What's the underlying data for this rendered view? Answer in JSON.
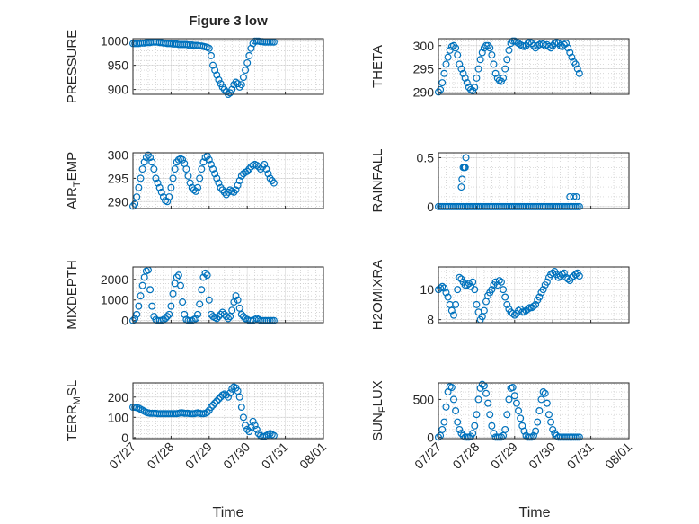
{
  "figure": {
    "title": "Figure 3 low",
    "x_label": "Time"
  },
  "x_ticks": [
    "07/27",
    "07/28",
    "07/29",
    "07/30",
    "07/31",
    "08/01"
  ],
  "chart_data": [
    {
      "type": "scatter",
      "ylabel": "PRESSURE",
      "ylim": [
        890,
        1005
      ],
      "yticks": [
        "900",
        "950",
        "1000"
      ],
      "grid": true,
      "panel": "row1-left",
      "x": [
        0,
        0.05,
        0.1,
        0.15,
        0.2,
        0.25,
        0.3,
        0.35,
        0.4,
        0.45,
        0.5,
        0.55,
        0.6,
        0.65,
        0.7,
        0.75,
        0.8,
        0.85,
        0.9,
        0.95,
        1,
        1.05,
        1.1,
        1.15,
        1.2,
        1.25,
        1.3,
        1.35,
        1.4,
        1.45,
        1.5,
        1.55,
        1.6,
        1.65,
        1.7,
        1.75,
        1.8,
        1.85,
        1.9,
        1.95,
        2,
        2.05,
        2.1,
        2.15,
        2.2,
        2.25,
        2.3,
        2.35,
        2.4,
        2.45,
        2.5,
        2.55,
        2.6,
        2.65,
        2.7,
        2.75,
        2.8,
        2.85,
        2.9,
        2.95,
        3,
        3.05,
        3.1,
        3.15,
        3.2,
        3.25,
        3.3,
        3.35,
        3.4,
        3.45,
        3.5,
        3.55,
        3.6,
        3.65,
        3.7
      ],
      "y": [
        995,
        995,
        995,
        995,
        996,
        996,
        996,
        997,
        997,
        997,
        998,
        998,
        998,
        998,
        997,
        997,
        996,
        996,
        995,
        995,
        995,
        994,
        994,
        994,
        993,
        993,
        993,
        993,
        993,
        992,
        992,
        992,
        991,
        991,
        991,
        990,
        990,
        989,
        988,
        987,
        985,
        970,
        950,
        940,
        930,
        920,
        912,
        905,
        900,
        895,
        890,
        893,
        900,
        910,
        915,
        912,
        905,
        910,
        925,
        940,
        955,
        970,
        985,
        995,
        1000,
        1000,
        1000,
        999,
        999,
        998,
        998,
        998,
        998,
        998,
        998
      ]
    },
    {
      "type": "scatter",
      "ylabel": "THETA",
      "ylim": [
        289.5,
        301.5
      ],
      "yticks": [
        "290",
        "295",
        "300"
      ],
      "grid": true,
      "panel": "row1-right",
      "x": [
        0,
        0.05,
        0.1,
        0.15,
        0.2,
        0.25,
        0.3,
        0.35,
        0.4,
        0.45,
        0.5,
        0.55,
        0.6,
        0.65,
        0.7,
        0.75,
        0.8,
        0.85,
        0.9,
        0.95,
        1,
        1.05,
        1.1,
        1.15,
        1.2,
        1.25,
        1.3,
        1.35,
        1.4,
        1.45,
        1.5,
        1.55,
        1.6,
        1.65,
        1.7,
        1.75,
        1.8,
        1.85,
        1.9,
        1.95,
        2,
        2.05,
        2.1,
        2.15,
        2.2,
        2.25,
        2.3,
        2.35,
        2.4,
        2.45,
        2.5,
        2.55,
        2.6,
        2.65,
        2.7,
        2.75,
        2.8,
        2.85,
        2.9,
        2.95,
        3,
        3.05,
        3.1,
        3.15,
        3.2,
        3.25,
        3.3,
        3.35,
        3.4,
        3.45,
        3.5,
        3.55,
        3.6,
        3.65,
        3.7
      ],
      "y": [
        290,
        290.5,
        292,
        294,
        296,
        297.5,
        299,
        299.8,
        300,
        299.5,
        298,
        296,
        295,
        294,
        293,
        292,
        291,
        290.5,
        290.3,
        291,
        293,
        295,
        297,
        298.5,
        299.5,
        300,
        300,
        299.5,
        298,
        296,
        294,
        293,
        292.5,
        292.3,
        293,
        295,
        297,
        299,
        300.5,
        301,
        301,
        300.8,
        300.5,
        300.2,
        300,
        299.8,
        300,
        300.5,
        300.8,
        300.5,
        300,
        299.5,
        300,
        300.2,
        300.5,
        300.3,
        300,
        300.2,
        299.8,
        299.5,
        300,
        300.5,
        300.7,
        300.5,
        300,
        299.8,
        300.2,
        300.5,
        299.5,
        298.5,
        297.5,
        296.5,
        296,
        295,
        294
      ]
    },
    {
      "type": "scatter",
      "ylabel": "AIR_TEMP",
      "ylim": [
        288.5,
        300.5
      ],
      "yticks": [
        "290",
        "295",
        "300"
      ],
      "grid": true,
      "panel": "row2-left",
      "x": [
        0,
        0.05,
        0.1,
        0.15,
        0.2,
        0.25,
        0.3,
        0.35,
        0.4,
        0.45,
        0.5,
        0.55,
        0.6,
        0.65,
        0.7,
        0.75,
        0.8,
        0.85,
        0.9,
        0.95,
        1,
        1.05,
        1.1,
        1.15,
        1.2,
        1.25,
        1.3,
        1.35,
        1.4,
        1.45,
        1.5,
        1.55,
        1.6,
        1.65,
        1.7,
        1.75,
        1.8,
        1.85,
        1.9,
        1.95,
        2,
        2.05,
        2.1,
        2.15,
        2.2,
        2.25,
        2.3,
        2.35,
        2.4,
        2.45,
        2.5,
        2.55,
        2.6,
        2.65,
        2.7,
        2.75,
        2.8,
        2.85,
        2.9,
        2.95,
        3,
        3.05,
        3.1,
        3.15,
        3.2,
        3.25,
        3.3,
        3.35,
        3.4,
        3.45,
        3.5,
        3.55,
        3.6,
        3.65,
        3.7
      ],
      "y": [
        289,
        289.5,
        291,
        293,
        295,
        297,
        298.5,
        299.5,
        300,
        299.5,
        298.5,
        297,
        295,
        294,
        293,
        292,
        291,
        290.2,
        290,
        291,
        293,
        295,
        297,
        298.5,
        299,
        299.2,
        299,
        298.2,
        297,
        295.5,
        294,
        293,
        292.5,
        292.2,
        293,
        295,
        297,
        298.5,
        299.5,
        299.8,
        299,
        298,
        297,
        296,
        295,
        294,
        293,
        292.5,
        292,
        291.5,
        292,
        292.5,
        292.2,
        292,
        292.5,
        293.5,
        294.5,
        295.5,
        296,
        296.3,
        296.5,
        297,
        297.5,
        297.8,
        298,
        297.8,
        297.5,
        297,
        297.5,
        298,
        297,
        296,
        295,
        294.5,
        294
      ]
    },
    {
      "type": "scatter",
      "ylabel": "RAINFALL",
      "ylim": [
        -0.02,
        0.55
      ],
      "yticks": [
        "0",
        "0.5"
      ],
      "grid": true,
      "panel": "row2-right",
      "x": [
        0,
        0.05,
        0.1,
        0.15,
        0.2,
        0.25,
        0.3,
        0.35,
        0.4,
        0.45,
        0.5,
        0.55,
        0.6,
        0.65,
        0.7,
        0.75,
        0.8,
        0.85,
        0.9,
        0.95,
        1,
        1.05,
        1.1,
        1.15,
        1.2,
        1.25,
        1.3,
        1.35,
        1.4,
        1.45,
        1.5,
        1.55,
        1.6,
        1.65,
        1.7,
        1.75,
        1.8,
        1.85,
        1.9,
        1.95,
        2,
        2.05,
        2.1,
        2.15,
        2.2,
        2.25,
        2.3,
        2.35,
        2.4,
        2.45,
        2.5,
        2.55,
        2.6,
        2.65,
        2.7,
        2.75,
        2.8,
        2.85,
        2.9,
        2.95,
        3,
        3.05,
        3.1,
        3.15,
        3.2,
        3.25,
        3.3,
        3.35,
        3.4,
        3.45,
        3.5,
        3.55,
        3.6,
        3.65,
        3.7,
        0.6,
        0.62,
        0.65,
        0.68,
        0.7,
        0.72,
        0.75,
        3.45,
        3.55,
        3.62
      ],
      "y": [
        0,
        0,
        0,
        0,
        0,
        0,
        0,
        0,
        0,
        0,
        0,
        0,
        0,
        0,
        0,
        0,
        0,
        0,
        0,
        0,
        0,
        0,
        0,
        0,
        0,
        0,
        0,
        0,
        0,
        0,
        0,
        0,
        0,
        0,
        0,
        0,
        0,
        0,
        0,
        0,
        0,
        0,
        0,
        0,
        0,
        0,
        0,
        0,
        0,
        0,
        0,
        0,
        0,
        0,
        0,
        0,
        0,
        0,
        0,
        0,
        0,
        0,
        0,
        0,
        0,
        0,
        0,
        0,
        0,
        0,
        0,
        0,
        0,
        0,
        0,
        0.2,
        0.28,
        0.4,
        0.4,
        0.4,
        0.5,
        0,
        0.1,
        0.1,
        0.1
      ]
    },
    {
      "type": "scatter",
      "ylabel": "MIXDEPTH",
      "ylim": [
        -100,
        2600
      ],
      "yticks": [
        "0",
        "1000",
        "2000"
      ],
      "grid": true,
      "panel": "row3-left",
      "x": [
        0,
        0.05,
        0.1,
        0.15,
        0.2,
        0.25,
        0.3,
        0.35,
        0.4,
        0.45,
        0.5,
        0.55,
        0.6,
        0.65,
        0.7,
        0.75,
        0.8,
        0.85,
        0.9,
        0.95,
        1,
        1.05,
        1.1,
        1.15,
        1.2,
        1.25,
        1.3,
        1.35,
        1.4,
        1.45,
        1.5,
        1.55,
        1.6,
        1.65,
        1.7,
        1.75,
        1.8,
        1.85,
        1.9,
        1.95,
        2,
        2.05,
        2.1,
        2.15,
        2.2,
        2.25,
        2.3,
        2.35,
        2.4,
        2.45,
        2.5,
        2.55,
        2.6,
        2.65,
        2.7,
        2.75,
        2.8,
        2.85,
        2.9,
        2.95,
        3,
        3.05,
        3.1,
        3.15,
        3.2,
        3.25,
        3.3,
        3.35,
        3.4,
        3.45,
        3.5,
        3.55,
        3.6,
        3.65,
        3.7
      ],
      "y": [
        0,
        100,
        300,
        700,
        1200,
        1700,
        2100,
        2400,
        2450,
        1500,
        700,
        200,
        50,
        0,
        0,
        0,
        50,
        100,
        200,
        300,
        700,
        1300,
        1800,
        2100,
        2200,
        1700,
        900,
        300,
        50,
        0,
        0,
        0,
        50,
        100,
        300,
        800,
        1500,
        2100,
        2300,
        2200,
        1000,
        300,
        200,
        150,
        100,
        200,
        300,
        400,
        300,
        200,
        100,
        200,
        500,
        900,
        1200,
        1000,
        600,
        300,
        200,
        100,
        50,
        0,
        0,
        0,
        50,
        100,
        50,
        0,
        0,
        0,
        0,
        0,
        0,
        0,
        0
      ]
    },
    {
      "type": "scatter",
      "ylabel": "H2OMIXRA",
      "ylim": [
        7.8,
        11.5
      ],
      "yticks": [
        "8",
        "10"
      ],
      "grid": true,
      "panel": "row3-right",
      "x": [
        0,
        0.05,
        0.1,
        0.15,
        0.2,
        0.25,
        0.3,
        0.35,
        0.4,
        0.45,
        0.5,
        0.55,
        0.6,
        0.65,
        0.7,
        0.75,
        0.8,
        0.85,
        0.9,
        0.95,
        1,
        1.05,
        1.1,
        1.15,
        1.2,
        1.25,
        1.3,
        1.35,
        1.4,
        1.45,
        1.5,
        1.55,
        1.6,
        1.65,
        1.7,
        1.75,
        1.8,
        1.85,
        1.9,
        1.95,
        2,
        2.05,
        2.1,
        2.15,
        2.2,
        2.25,
        2.3,
        2.35,
        2.4,
        2.45,
        2.5,
        2.55,
        2.6,
        2.65,
        2.7,
        2.75,
        2.8,
        2.85,
        2.9,
        2.95,
        3,
        3.05,
        3.1,
        3.15,
        3.2,
        3.25,
        3.3,
        3.35,
        3.4,
        3.45,
        3.5,
        3.55,
        3.6,
        3.65,
        3.7
      ],
      "y": [
        10,
        10.1,
        10.2,
        10.1,
        9.8,
        9.5,
        9,
        8.6,
        8.3,
        9,
        10,
        10.8,
        10.7,
        10.5,
        10.3,
        10.3,
        10.4,
        10.2,
        10.5,
        10,
        9,
        8.5,
        8,
        8.2,
        8.6,
        9.2,
        9.6,
        9.8,
        10,
        10.3,
        10.5,
        10.3,
        10.6,
        10.5,
        10,
        9.5,
        9,
        8.7,
        8.5,
        8.4,
        8.3,
        8.4,
        8.6,
        8.7,
        8.5,
        8.5,
        8.6,
        8.7,
        8.8,
        8.8,
        8.9,
        9,
        9.3,
        9.5,
        9.8,
        10,
        10.3,
        10.5,
        10.8,
        11,
        11.1,
        11.2,
        11,
        10.8,
        10.9,
        11,
        11.1,
        10.8,
        10.7,
        10.6,
        10.8,
        10.9,
        11,
        11.1,
        10.9
      ]
    },
    {
      "type": "scatter",
      "ylabel": "TERR_MSL",
      "ylim": [
        -5,
        270
      ],
      "yticks": [
        "0",
        "100",
        "200"
      ],
      "grid": true,
      "panel": "row4-left",
      "x": [
        0,
        0.05,
        0.1,
        0.15,
        0.2,
        0.25,
        0.3,
        0.35,
        0.4,
        0.45,
        0.5,
        0.55,
        0.6,
        0.65,
        0.7,
        0.75,
        0.8,
        0.85,
        0.9,
        0.95,
        1,
        1.05,
        1.1,
        1.15,
        1.2,
        1.25,
        1.3,
        1.35,
        1.4,
        1.45,
        1.5,
        1.55,
        1.6,
        1.65,
        1.7,
        1.75,
        1.8,
        1.85,
        1.9,
        1.95,
        2,
        2.05,
        2.1,
        2.15,
        2.2,
        2.25,
        2.3,
        2.35,
        2.4,
        2.45,
        2.5,
        2.55,
        2.6,
        2.65,
        2.7,
        2.75,
        2.8,
        2.85,
        2.9,
        2.95,
        3,
        3.05,
        3.1,
        3.15,
        3.2,
        3.25,
        3.3,
        3.35,
        3.4,
        3.45,
        3.5,
        3.55,
        3.6,
        3.65,
        3.7
      ],
      "y": [
        150,
        150,
        148,
        145,
        140,
        135,
        130,
        125,
        122,
        120,
        120,
        120,
        120,
        118,
        118,
        118,
        118,
        118,
        118,
        118,
        118,
        118,
        118,
        118,
        120,
        122,
        122,
        120,
        120,
        120,
        118,
        118,
        118,
        120,
        122,
        120,
        118,
        118,
        120,
        125,
        135,
        150,
        160,
        170,
        180,
        190,
        200,
        210,
        215,
        210,
        200,
        220,
        240,
        250,
        245,
        230,
        200,
        150,
        100,
        60,
        40,
        30,
        50,
        80,
        60,
        40,
        20,
        10,
        5,
        5,
        10,
        15,
        20,
        15,
        10
      ]
    },
    {
      "type": "scatter",
      "ylabel": "SUN_FLUX",
      "ylim": [
        -20,
        720
      ],
      "yticks": [
        "0",
        "500"
      ],
      "grid": true,
      "panel": "row4-right",
      "x": [
        0,
        0.05,
        0.1,
        0.15,
        0.2,
        0.25,
        0.3,
        0.35,
        0.4,
        0.45,
        0.5,
        0.55,
        0.6,
        0.65,
        0.7,
        0.75,
        0.8,
        0.85,
        0.9,
        0.95,
        1,
        1.05,
        1.1,
        1.15,
        1.2,
        1.25,
        1.3,
        1.35,
        1.4,
        1.45,
        1.5,
        1.55,
        1.6,
        1.65,
        1.7,
        1.75,
        1.8,
        1.85,
        1.9,
        1.95,
        2,
        2.05,
        2.1,
        2.15,
        2.2,
        2.25,
        2.3,
        2.35,
        2.4,
        2.45,
        2.5,
        2.55,
        2.6,
        2.65,
        2.7,
        2.75,
        2.8,
        2.85,
        2.9,
        2.95,
        3,
        3.05,
        3.1,
        3.15,
        3.2,
        3.25,
        3.3,
        3.35,
        3.4,
        3.45,
        3.5,
        3.55,
        3.6,
        3.65,
        3.7
      ],
      "y": [
        0,
        20,
        100,
        200,
        400,
        600,
        670,
        660,
        500,
        350,
        200,
        100,
        50,
        20,
        0,
        0,
        0,
        10,
        50,
        150,
        300,
        500,
        650,
        700,
        680,
        580,
        450,
        300,
        150,
        50,
        0,
        0,
        0,
        0,
        20,
        100,
        300,
        500,
        650,
        660,
        550,
        450,
        350,
        250,
        150,
        80,
        20,
        0,
        0,
        0,
        20,
        80,
        200,
        350,
        500,
        600,
        580,
        450,
        300,
        200,
        100,
        50,
        20,
        0,
        0,
        0,
        0,
        0,
        0,
        0,
        0,
        0,
        0,
        0,
        0
      ]
    }
  ]
}
